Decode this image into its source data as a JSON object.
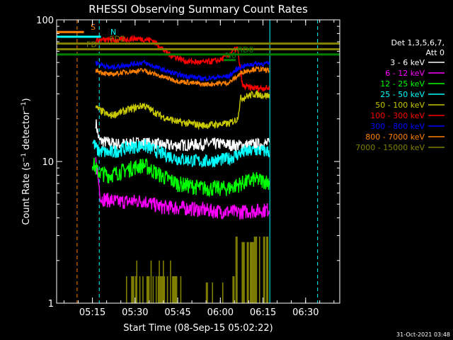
{
  "chart_data": {
    "type": "line",
    "title": "RHESSI Observing Summary Count Rates",
    "xlabel": "Start Time (08-Sep-15 05:02:22)",
    "ylabel": "Count Rate (s⁻¹ detector⁻¹)",
    "ylabel_main": "Count Rate (s",
    "ylabel_sup1": "−1",
    "ylabel_mid": " detector",
    "ylabel_sup2": "−1",
    "ylabel_end": ")",
    "yscale": "log",
    "ylim": [
      1,
      100
    ],
    "xlim": [
      5.04,
      6.7
    ],
    "y_ticks": [
      {
        "value": 1,
        "label": "1"
      },
      {
        "value": 10,
        "label": "10"
      },
      {
        "value": 100,
        "label": "100"
      }
    ],
    "x_ticks": [
      {
        "value": 5.25,
        "label": "05:15"
      },
      {
        "value": 5.5,
        "label": "05:30"
      },
      {
        "value": 5.75,
        "label": "05:45"
      },
      {
        "value": 6.0,
        "label": "06:00"
      },
      {
        "value": 6.25,
        "label": "06:15"
      },
      {
        "value": 6.5,
        "label": "06:30"
      }
    ],
    "x_minor_step": 0.0833,
    "legend": {
      "header": [
        "Det 1,3,5,6,7,",
        "Att 0"
      ],
      "position": "right"
    },
    "series": [
      {
        "name": "3 - 6 keV",
        "color": "#ffffff",
        "noise": 0.1,
        "points": [
          [
            5.27,
            19
          ],
          [
            5.29,
            14
          ],
          [
            5.4,
            13.3
          ],
          [
            5.55,
            13.6
          ],
          [
            5.7,
            13
          ],
          [
            5.85,
            13.2
          ],
          [
            6.0,
            13.4
          ],
          [
            6.1,
            13
          ],
          [
            6.2,
            13.2
          ],
          [
            6.29,
            13.4
          ]
        ]
      },
      {
        "name": "6 - 12 keV",
        "color": "#ff00ff",
        "noise": 0.12,
        "points": [
          [
            5.27,
            10
          ],
          [
            5.3,
            5.5
          ],
          [
            5.4,
            5.2
          ],
          [
            5.55,
            5.3
          ],
          [
            5.65,
            4.8
          ],
          [
            5.8,
            4.7
          ],
          [
            5.95,
            4.5
          ],
          [
            6.1,
            4.4
          ],
          [
            6.2,
            4.5
          ],
          [
            6.29,
            4.6
          ]
        ]
      },
      {
        "name": "12 - 25 keV",
        "color": "#00ff00",
        "noise": 0.13,
        "points": [
          [
            5.25,
            10
          ],
          [
            5.28,
            8.5
          ],
          [
            5.35,
            8
          ],
          [
            5.45,
            8.8
          ],
          [
            5.55,
            9.5
          ],
          [
            5.65,
            8
          ],
          [
            5.75,
            7
          ],
          [
            5.9,
            6.5
          ],
          [
            6.05,
            6.5
          ],
          [
            6.12,
            7
          ],
          [
            6.2,
            7.5
          ],
          [
            6.29,
            7.2
          ]
        ]
      },
      {
        "name": "25 - 50 keV",
        "color": "#00ffff",
        "noise": 0.11,
        "points": [
          [
            5.25,
            14
          ],
          [
            5.28,
            12
          ],
          [
            5.35,
            11.5
          ],
          [
            5.45,
            12.5
          ],
          [
            5.55,
            13
          ],
          [
            5.65,
            11.5
          ],
          [
            5.75,
            10.5
          ],
          [
            5.9,
            10
          ],
          [
            6.05,
            10.5
          ],
          [
            6.12,
            11.5
          ],
          [
            6.2,
            12
          ],
          [
            6.29,
            11.8
          ]
        ]
      },
      {
        "name": "50 - 100 keV",
        "color": "#c8c800",
        "noise": 0.06,
        "points": [
          [
            5.27,
            24
          ],
          [
            5.35,
            21
          ],
          [
            5.45,
            23
          ],
          [
            5.55,
            25
          ],
          [
            5.65,
            21
          ],
          [
            5.75,
            19
          ],
          [
            5.9,
            18
          ],
          [
            6.05,
            18.5
          ],
          [
            6.1,
            20
          ],
          [
            6.12,
            28
          ],
          [
            6.2,
            30
          ],
          [
            6.29,
            29
          ]
        ]
      },
      {
        "name": "100 - 300 keV",
        "color": "#ff0000",
        "noise": 0.05,
        "points": [
          [
            5.27,
            72
          ],
          [
            5.4,
            72
          ],
          [
            5.5,
            74
          ],
          [
            5.6,
            72
          ],
          [
            5.7,
            57
          ],
          [
            5.8,
            51
          ],
          [
            5.9,
            50
          ],
          [
            6.0,
            52
          ],
          [
            6.05,
            57
          ],
          [
            6.09,
            62
          ],
          [
            6.1,
            63
          ],
          [
            6.13,
            34
          ],
          [
            6.2,
            33
          ],
          [
            6.29,
            33
          ]
        ]
      },
      {
        "name": "300 - 800 keV",
        "color": "#0000ff",
        "noise": 0.04,
        "points": [
          [
            5.27,
            50
          ],
          [
            5.35,
            46
          ],
          [
            5.45,
            48
          ],
          [
            5.55,
            50
          ],
          [
            5.65,
            45
          ],
          [
            5.75,
            41
          ],
          [
            5.9,
            38.5
          ],
          [
            6.05,
            40
          ],
          [
            6.1,
            45
          ],
          [
            6.13,
            47
          ],
          [
            6.2,
            49
          ],
          [
            6.29,
            49
          ]
        ]
      },
      {
        "name": "800 - 7000 keV",
        "color": "#ff8000",
        "noise": 0.04,
        "points": [
          [
            5.27,
            44
          ],
          [
            5.35,
            41
          ],
          [
            5.45,
            43
          ],
          [
            5.55,
            44
          ],
          [
            5.65,
            40
          ],
          [
            5.75,
            37
          ],
          [
            5.9,
            35
          ],
          [
            6.05,
            36
          ],
          [
            6.1,
            40
          ],
          [
            6.13,
            43
          ],
          [
            6.2,
            45
          ],
          [
            6.29,
            44
          ]
        ]
      },
      {
        "name": "7000 - 15000 keV",
        "color": "#808000",
        "noise": 0.0,
        "points": []
      }
    ],
    "annotations": [
      {
        "label": "S",
        "color": "#ff8000",
        "x_start": 5.04,
        "x_end": 5.2,
        "y": 82
      },
      {
        "label": "N",
        "color": "#00ffff",
        "x_start": 5.04,
        "x_end": 5.3,
        "y": 76
      },
      {
        "label": "FD2",
        "color": "#808000",
        "x_start": 5.04,
        "x_end": 6.7,
        "y": 68
      },
      {
        "label": "FD",
        "color": "#808000",
        "x_start": 5.04,
        "x_end": 6.7,
        "y": 62
      },
      {
        "label": "RD0",
        "color": "#008000",
        "x_start": 5.04,
        "x_end": 6.7,
        "y": 57
      },
      {
        "label": "N6",
        "color": "#008000",
        "x_start": 6.02,
        "x_end": 6.09,
        "y": 52
      }
    ],
    "vertical_markers": [
      {
        "x": 5.16,
        "color": "#ff8000",
        "style": "dashed"
      },
      {
        "x": 5.29,
        "color": "#00ffff",
        "style": "dashed"
      },
      {
        "x": 6.29,
        "color": "#00ffff",
        "style": "solid"
      },
      {
        "x": 6.57,
        "color": "#00ffff",
        "style": "dashed"
      }
    ],
    "cyan_box": {
      "x_start": 5.04,
      "x_end": 6.7,
      "y": 76
    }
  },
  "timestamp": "31-Oct-2021 03:48"
}
